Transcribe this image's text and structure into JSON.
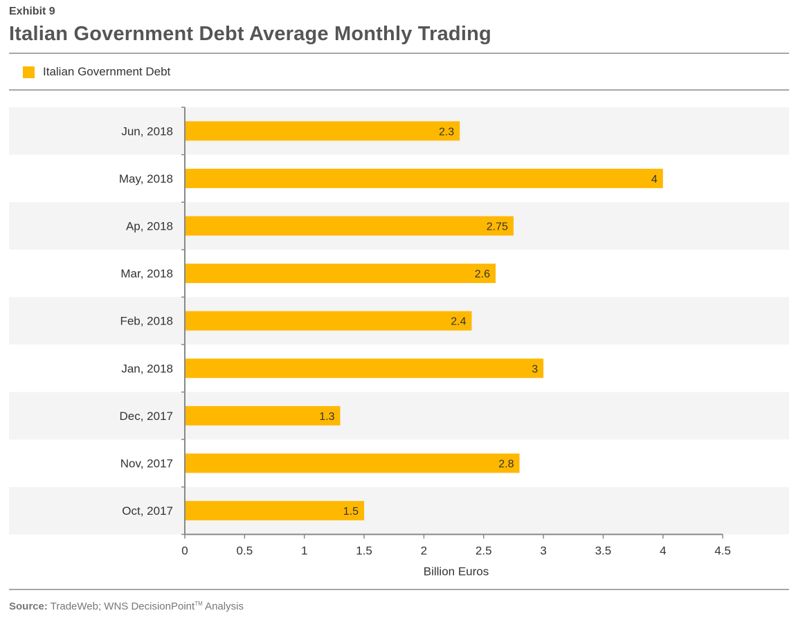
{
  "exhibit_label": "Exhibit 9",
  "legend": {
    "series_name": "Italian Government Debt"
  },
  "source": {
    "label": "Source:",
    "text": "TradeWeb; WNS DecisionPoint",
    "tm": "TM",
    "suffix": " Analysis"
  },
  "colors": {
    "bar": "#FFB800",
    "band": "#f4f4f4",
    "axis": "#888888"
  },
  "chart_data": {
    "type": "bar",
    "orientation": "horizontal",
    "title": "Italian Government Debt Average Monthly Trading",
    "xlabel": "Billion Euros",
    "ylabel": "",
    "xlim": [
      0,
      4.5
    ],
    "xticks": [
      "0",
      "0.5",
      "1",
      "1.5",
      "2",
      "2.5",
      "3",
      "3.5",
      "4",
      "4.5"
    ],
    "categories": [
      "Jun, 2018",
      "May, 2018",
      "Ap, 2018",
      "Mar, 2018",
      "Feb, 2018",
      "Jan, 2018",
      "Dec, 2017",
      "Nov, 2017",
      "Oct, 2017"
    ],
    "series": [
      {
        "name": "Italian Government Debt",
        "values": [
          2.3,
          4,
          2.75,
          2.6,
          2.4,
          3,
          1.3,
          2.8,
          1.5
        ],
        "labels": [
          "2.3",
          "4",
          "2.75",
          "2.6",
          "2.4",
          "3",
          "1.3",
          "2.8",
          "1.5"
        ]
      }
    ],
    "legend_position": "top-left",
    "alternating_bands": true
  }
}
